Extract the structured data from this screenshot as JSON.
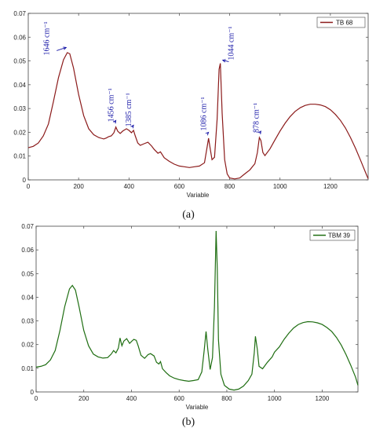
{
  "chart_data": [
    {
      "type": "line",
      "subfigure_label": "(a)",
      "xlabel": "Variable",
      "ylabel": "",
      "xlim": [
        0,
        1350
      ],
      "ylim": [
        0,
        0.07
      ],
      "xticks": [
        0,
        200,
        400,
        600,
        800,
        1000,
        1200
      ],
      "yticks": [
        0,
        0.01,
        0.02,
        0.03,
        0.04,
        0.05,
        0.06,
        0.07
      ],
      "grid": false,
      "legend_position": "top-right",
      "colors": {
        "line": "#8b1a1a"
      },
      "series": [
        {
          "name": "TB 68",
          "x": [
            0,
            20,
            40,
            60,
            80,
            100,
            120,
            140,
            155,
            165,
            180,
            200,
            220,
            240,
            260,
            280,
            300,
            310,
            320,
            330,
            340,
            348,
            355,
            365,
            375,
            390,
            400,
            410,
            418,
            425,
            435,
            445,
            460,
            475,
            490,
            500,
            515,
            525,
            540,
            560,
            580,
            600,
            620,
            640,
            660,
            680,
            700,
            710,
            716,
            722,
            730,
            740,
            750,
            758,
            763,
            770,
            780,
            790,
            800,
            820,
            840,
            860,
            880,
            900,
            910,
            918,
            924,
            932,
            940,
            960,
            980,
            1000,
            1020,
            1040,
            1060,
            1080,
            1100,
            1120,
            1140,
            1160,
            1180,
            1200,
            1220,
            1240,
            1260,
            1280,
            1300,
            1320,
            1340,
            1350
          ],
          "y": [
            0.0135,
            0.0141,
            0.0155,
            0.0185,
            0.0235,
            0.033,
            0.043,
            0.0505,
            0.0535,
            0.053,
            0.047,
            0.036,
            0.027,
            0.0215,
            0.019,
            0.0178,
            0.0172,
            0.0176,
            0.0182,
            0.0185,
            0.0198,
            0.0222,
            0.0205,
            0.0195,
            0.0205,
            0.0215,
            0.0208,
            0.0198,
            0.0208,
            0.0185,
            0.0155,
            0.0145,
            0.0152,
            0.0158,
            0.0142,
            0.0128,
            0.0112,
            0.0118,
            0.0093,
            0.0078,
            0.0066,
            0.0058,
            0.0055,
            0.0052,
            0.0055,
            0.0058,
            0.0072,
            0.0135,
            0.0175,
            0.0135,
            0.0085,
            0.0095,
            0.0255,
            0.0465,
            0.049,
            0.028,
            0.0085,
            0.0025,
            0.0008,
            0.0004,
            0.0008,
            0.0025,
            0.0042,
            0.0068,
            0.0115,
            0.0178,
            0.0165,
            0.0115,
            0.0102,
            0.013,
            0.0168,
            0.0205,
            0.0238,
            0.0266,
            0.0288,
            0.0303,
            0.0313,
            0.0318,
            0.0318,
            0.0315,
            0.0308,
            0.0295,
            0.0275,
            0.025,
            0.0218,
            0.0178,
            0.0132,
            0.0082,
            0.003,
            0.0005
          ]
        }
      ],
      "annotations": [
        {
          "text": "1646 cm⁻¹",
          "x": 160,
          "y": 0.054
        },
        {
          "text": "1456 cm⁻¹",
          "x": 348,
          "y": 0.023
        },
        {
          "text": "1385 cm⁻¹",
          "x": 418,
          "y": 0.021
        },
        {
          "text": "1086 cm⁻¹",
          "x": 716,
          "y": 0.018
        },
        {
          "text": "1044 cm⁻¹",
          "x": 763,
          "y": 0.049
        },
        {
          "text": "878 cm⁻¹",
          "x": 924,
          "y": 0.0185
        }
      ]
    },
    {
      "type": "line",
      "subfigure_label": "(b)",
      "xlabel": "Variable",
      "ylabel": "",
      "xlim": [
        0,
        1350
      ],
      "ylim": [
        0,
        0.07
      ],
      "xticks": [
        0,
        200,
        400,
        600,
        800,
        1000,
        1200
      ],
      "yticks": [
        0,
        0.01,
        0.02,
        0.03,
        0.04,
        0.05,
        0.06,
        0.07
      ],
      "grid": false,
      "legend_position": "top-right",
      "colors": {
        "line": "#1f6e12"
      },
      "series": [
        {
          "name": "TBM 39",
          "x": [
            0,
            20,
            40,
            60,
            80,
            100,
            120,
            140,
            152,
            165,
            180,
            200,
            220,
            240,
            260,
            280,
            300,
            315,
            325,
            335,
            345,
            352,
            360,
            368,
            380,
            392,
            402,
            410,
            420,
            428,
            440,
            455,
            470,
            480,
            495,
            505,
            515,
            522,
            530,
            545,
            560,
            580,
            600,
            620,
            640,
            660,
            680,
            695,
            705,
            713,
            720,
            730,
            740,
            748,
            755,
            760,
            765,
            775,
            790,
            810,
            830,
            850,
            870,
            890,
            905,
            915,
            920,
            928,
            935,
            950,
            970,
            990,
            1000,
            1020,
            1040,
            1060,
            1080,
            1100,
            1120,
            1140,
            1160,
            1180,
            1200,
            1220,
            1240,
            1260,
            1280,
            1300,
            1320,
            1340,
            1350
          ],
          "y": [
            0.0105,
            0.0108,
            0.0115,
            0.0135,
            0.0175,
            0.026,
            0.036,
            0.0435,
            0.045,
            0.043,
            0.036,
            0.026,
            0.0195,
            0.016,
            0.0148,
            0.0143,
            0.0145,
            0.016,
            0.0175,
            0.0165,
            0.0185,
            0.0228,
            0.0195,
            0.0215,
            0.0225,
            0.0205,
            0.0215,
            0.0222,
            0.0218,
            0.0195,
            0.0155,
            0.0142,
            0.0158,
            0.0162,
            0.0152,
            0.0125,
            0.0118,
            0.0128,
            0.0098,
            0.0082,
            0.0068,
            0.0058,
            0.0052,
            0.0048,
            0.0045,
            0.0048,
            0.0052,
            0.0085,
            0.0175,
            0.0255,
            0.018,
            0.0095,
            0.0145,
            0.036,
            0.068,
            0.052,
            0.022,
            0.0075,
            0.0028,
            0.0012,
            0.0008,
            0.0012,
            0.0025,
            0.0048,
            0.0075,
            0.0165,
            0.0235,
            0.018,
            0.0108,
            0.0098,
            0.0125,
            0.0148,
            0.0168,
            0.019,
            0.0222,
            0.0248,
            0.027,
            0.0285,
            0.0293,
            0.0297,
            0.0296,
            0.0292,
            0.0285,
            0.0272,
            0.0255,
            0.023,
            0.0198,
            0.0158,
            0.0112,
            0.0062,
            0.0028
          ]
        }
      ],
      "annotations": []
    }
  ]
}
